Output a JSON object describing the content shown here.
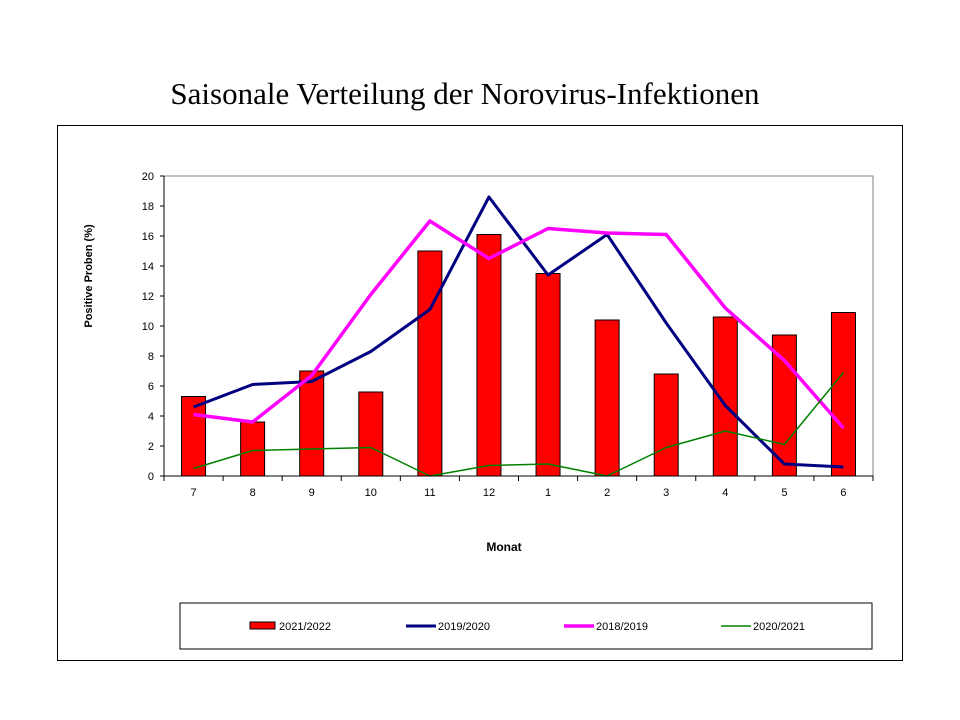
{
  "slide": {
    "title": "Saisonale Verteilung der Norovirus-Infektionen"
  },
  "chart_data": {
    "type": "bar",
    "title": "Saisonale Verteilung der Norovirus-Infektionen",
    "xlabel": "Monat",
    "ylabel": "Positive Proben (%)",
    "categories": [
      "7",
      "8",
      "9",
      "10",
      "11",
      "12",
      "1",
      "2",
      "3",
      "4",
      "5",
      "6"
    ],
    "ylim": [
      0,
      20
    ],
    "yticks": [
      0,
      2,
      4,
      6,
      8,
      10,
      12,
      14,
      16,
      18,
      20
    ],
    "grid": false,
    "legend_position": "bottom",
    "series": [
      {
        "name": "2021/2022",
        "kind": "bar",
        "color": "#ff0000",
        "values": [
          5.3,
          3.6,
          7.0,
          5.6,
          15.0,
          16.1,
          13.5,
          10.4,
          6.8,
          10.6,
          9.4,
          10.9
        ]
      },
      {
        "name": "2019/2020",
        "kind": "line",
        "color": "#000080",
        "values": [
          4.6,
          6.1,
          6.3,
          8.3,
          11.1,
          18.6,
          13.4,
          16.1,
          10.2,
          4.7,
          0.8,
          0.6
        ]
      },
      {
        "name": "2018/2019",
        "kind": "line",
        "color": "#ff00ff",
        "values": [
          4.1,
          3.6,
          6.7,
          12.1,
          17.0,
          14.5,
          16.5,
          16.2,
          16.1,
          11.2,
          7.7,
          3.2
        ]
      },
      {
        "name": "2020/2021",
        "kind": "line",
        "color": "#008000",
        "values": [
          0.5,
          1.7,
          1.8,
          1.9,
          0.0,
          0.7,
          0.8,
          0.0,
          1.9,
          3.0,
          2.1,
          6.9
        ]
      }
    ]
  }
}
